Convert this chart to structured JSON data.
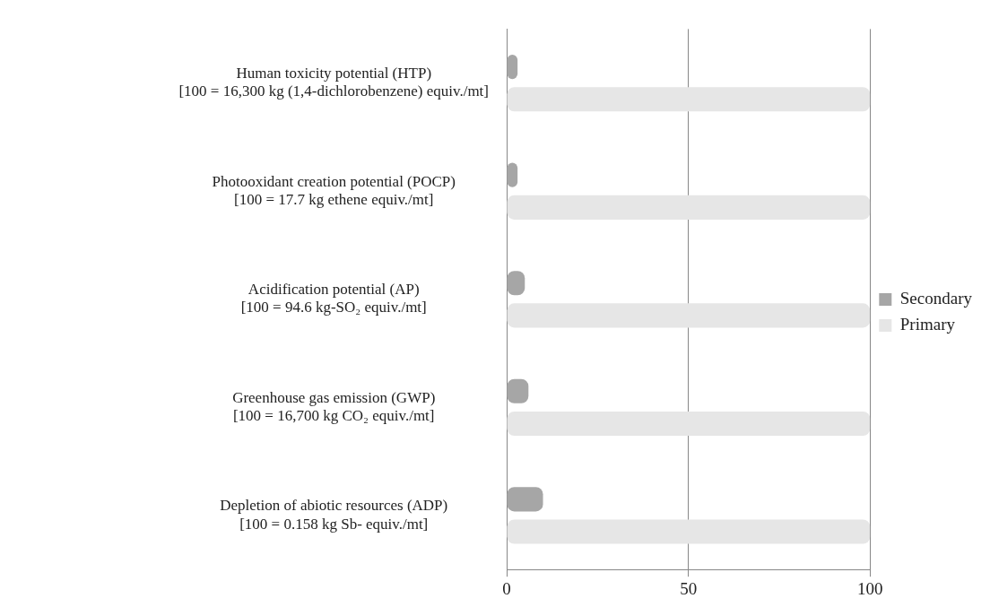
{
  "chart_data": {
    "type": "bar",
    "orientation": "horizontal",
    "categories": [
      "Human toxicity potential (HTP)\n[100 = 16,300 kg (1,4-dichlorobenzene) equiv./mt]",
      "Photooxidant creation potential (POCP)\n[100 = 17.7 kg ethene equiv./mt]",
      "Acidification potential (AP)\n[100 = 94.6 kg-SO₂ equiv./mt]",
      "Greenhouse gas emission (GWP)\n[100 = 16,700 kg CO₂ equiv./mt]",
      "Depletion of abiotic resources (ADP)\n[100 = 0.158 kg Sb- equiv./mt]"
    ],
    "series": [
      {
        "name": "Secondary",
        "color": "#a6a6a6",
        "values": [
          3,
          3,
          5,
          6,
          10
        ]
      },
      {
        "name": "Primary",
        "color": "#e6e6e6",
        "values": [
          100,
          100,
          100,
          100,
          100
        ]
      }
    ],
    "xlim": [
      0,
      100
    ],
    "xticks": [
      0,
      50,
      100
    ],
    "grid": "x",
    "legend": "right"
  }
}
